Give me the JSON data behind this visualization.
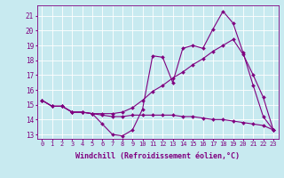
{
  "bg_color": "#c8eaf0",
  "grid_color": "#b8d8e0",
  "line_color": "#800080",
  "marker": "D",
  "marker_size": 2.0,
  "line_width": 0.8,
  "xlabel": "Windchill (Refroidissement éolien,°C)",
  "xlabel_fontsize": 6.0,
  "xtick_fontsize": 5.0,
  "ytick_fontsize": 5.5,
  "xlim": [
    -0.5,
    23.5
  ],
  "ylim": [
    12.7,
    21.7
  ],
  "yticks": [
    13,
    14,
    15,
    16,
    17,
    18,
    19,
    20,
    21
  ],
  "xticks": [
    0,
    1,
    2,
    3,
    4,
    5,
    6,
    7,
    8,
    9,
    10,
    11,
    12,
    13,
    14,
    15,
    16,
    17,
    18,
    19,
    20,
    21,
    22,
    23
  ],
  "series": [
    [
      15.3,
      14.9,
      14.9,
      14.5,
      14.5,
      14.4,
      13.7,
      13.0,
      12.9,
      13.3,
      14.7,
      18.3,
      18.2,
      16.5,
      18.8,
      19.0,
      18.8,
      20.1,
      21.3,
      20.5,
      18.5,
      16.3,
      14.2,
      13.3
    ],
    [
      15.3,
      14.9,
      14.9,
      14.5,
      14.5,
      14.4,
      14.4,
      14.4,
      14.5,
      14.8,
      15.3,
      15.9,
      16.3,
      16.8,
      17.2,
      17.7,
      18.1,
      18.6,
      19.0,
      19.4,
      18.4,
      17.0,
      15.5,
      13.3
    ],
    [
      15.3,
      14.9,
      14.9,
      14.5,
      14.5,
      14.4,
      14.3,
      14.2,
      14.2,
      14.3,
      14.3,
      14.3,
      14.3,
      14.3,
      14.2,
      14.2,
      14.1,
      14.0,
      14.0,
      13.9,
      13.8,
      13.7,
      13.6,
      13.3
    ]
  ]
}
